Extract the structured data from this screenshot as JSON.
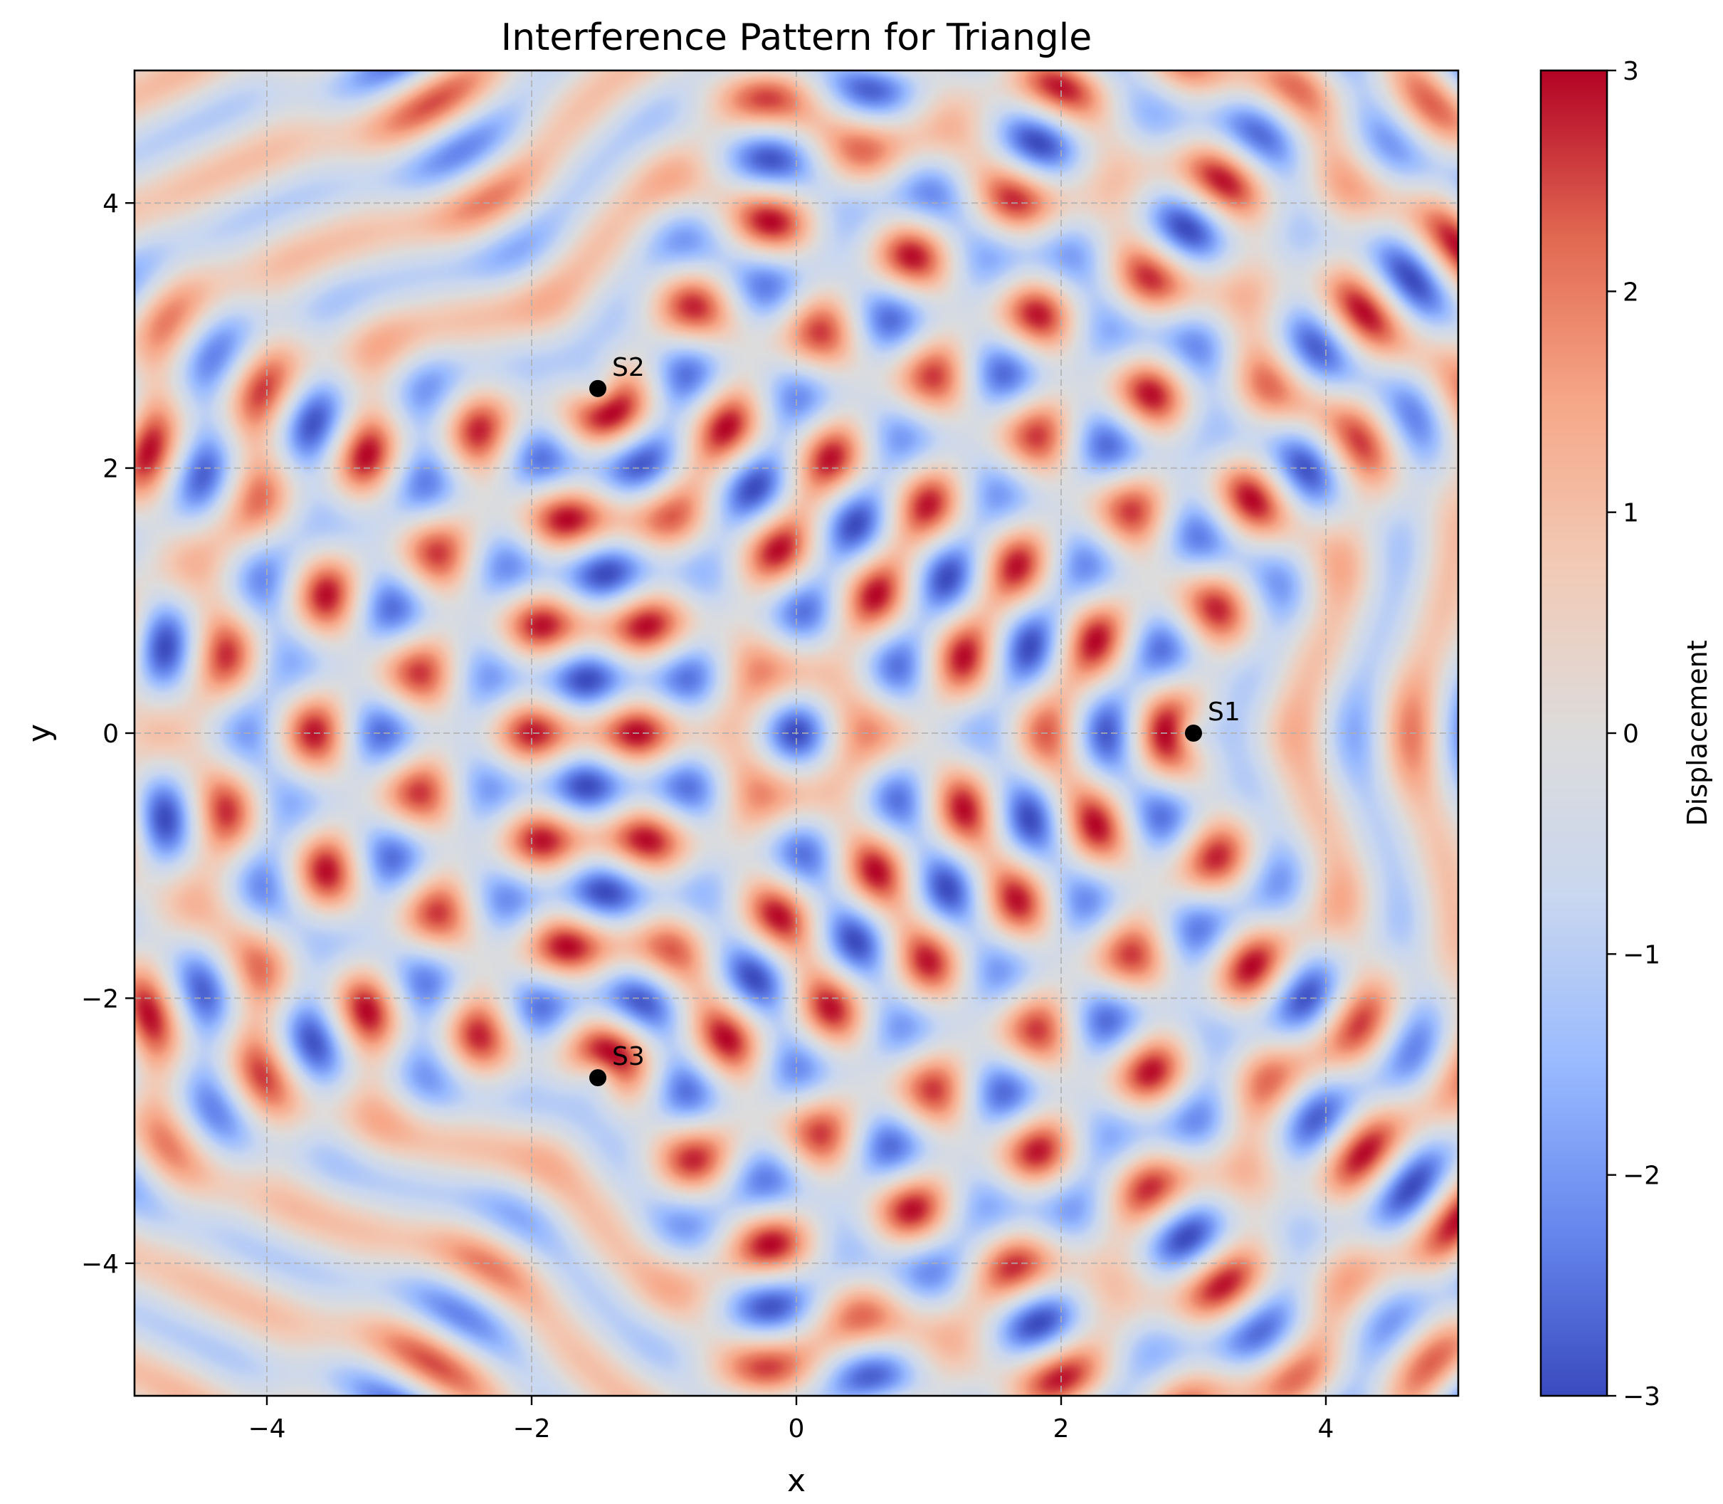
{
  "chart_data": {
    "type": "heatmap",
    "title": "Interference Pattern for Triangle",
    "xlabel": "x",
    "ylabel": "y",
    "xlim": [
      -5,
      5
    ],
    "ylim": [
      -5,
      5
    ],
    "xticks": [
      -4,
      -2,
      0,
      2,
      4
    ],
    "yticks": [
      -4,
      -2,
      0,
      2,
      4
    ],
    "xtick_labels": [
      "−4",
      "−2",
      "0",
      "2",
      "4"
    ],
    "ytick_labels": [
      "−4",
      "−2",
      "0",
      "2",
      "4"
    ],
    "grid": true,
    "colormap": "coolwarm",
    "colormap_stops": [
      "#3b4cc0",
      "#6788ee",
      "#9abbff",
      "#c9d7f0",
      "#dddcdc",
      "#f2cbb7",
      "#f7a889",
      "#e26952",
      "#b40426"
    ],
    "colorbar": {
      "label": "Displacement",
      "range": [
        -3,
        3
      ],
      "ticks": [
        3,
        2,
        1,
        0,
        -1,
        -2,
        -3
      ],
      "tick_labels": [
        "3",
        "2",
        "1",
        "0",
        "−1",
        "−2",
        "−3"
      ]
    },
    "wavenumber": 7.85,
    "sources": [
      {
        "label": "S1",
        "x": 3.0,
        "y": 0.0
      },
      {
        "label": "S2",
        "x": -1.5,
        "y": 2.6
      },
      {
        "label": "S3",
        "x": -1.5,
        "y": -2.6
      }
    ]
  }
}
